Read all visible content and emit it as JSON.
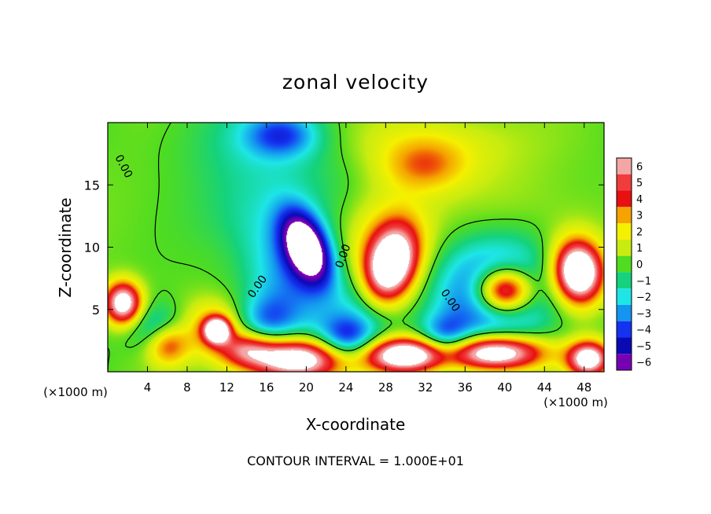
{
  "chart_data": {
    "type": "heatmap",
    "title": "zonal velocity",
    "xlabel": "X-coordinate",
    "ylabel": "Z-coordinate",
    "x_unit_left": "(×1000 m)",
    "x_unit_right": "(×1000 m)",
    "footer": "CONTOUR INTERVAL = 1.000E+01",
    "xlim": [
      0,
      50
    ],
    "ylim": [
      0,
      20
    ],
    "x_ticks": [
      4,
      8,
      12,
      16,
      20,
      24,
      28,
      32,
      36,
      40,
      44,
      48
    ],
    "y_ticks": [
      5,
      10,
      15
    ],
    "colorbar": {
      "levels": [
        6,
        5,
        4,
        3,
        2,
        1,
        0,
        -1,
        -2,
        -3,
        -4,
        -5,
        -6
      ],
      "colors": [
        "#f4a6a6",
        "#f03c3c",
        "#e81010",
        "#f5a300",
        "#f5f000",
        "#c8ec10",
        "#50dc20",
        "#14d27d",
        "#1ee6e6",
        "#1495f0",
        "#1432f0",
        "#0a0ab4",
        "#7800b4"
      ],
      "out_of_range_color": "#ffffff"
    },
    "zero_contour_label": "0.00",
    "features": [
      {
        "x": 20,
        "z": 10,
        "value": -8.0,
        "sx": 1.4,
        "sz": 2.2,
        "rot": 35
      },
      {
        "x": 18.5,
        "z": 7.5,
        "value": -3.0,
        "sx": 3.0,
        "sz": 4.0,
        "rot": 35
      },
      {
        "x": 28.5,
        "z": 8.5,
        "value": 8.0,
        "sx": 1.6,
        "sz": 2.2,
        "rot": -30
      },
      {
        "x": 28,
        "z": 9.5,
        "value": 3.5,
        "sx": 3.2,
        "sz": 3.4,
        "rot": -30
      },
      {
        "x": 40,
        "z": 6.5,
        "value": 9.0,
        "sx": 2.0,
        "sz": 1.3,
        "rot": 0
      },
      {
        "x": 39,
        "z": 6.5,
        "value": -5.0,
        "sx": 4.5,
        "sz": 3.0,
        "rot": 0
      },
      {
        "x": 47.5,
        "z": 8.0,
        "value": 8.0,
        "sx": 1.5,
        "sz": 1.6,
        "rot": 30
      },
      {
        "x": 47,
        "z": 8.0,
        "value": 3.0,
        "sx": 2.5,
        "sz": 2.4,
        "rot": 30
      },
      {
        "x": 1.5,
        "z": 5.5,
        "value": 8.0,
        "sx": 1.3,
        "sz": 1.2,
        "rot": 0
      },
      {
        "x": 11,
        "z": 3.3,
        "value": 8.0,
        "sx": 0.9,
        "sz": 0.7,
        "rot": 0
      },
      {
        "x": 10.5,
        "z": 3.5,
        "value": 3.0,
        "sx": 2.2,
        "sz": 1.6,
        "rot": 0
      },
      {
        "x": 6,
        "z": 2.2,
        "value": 4.0,
        "sx": 1.5,
        "sz": 1.2,
        "rot": 0
      },
      {
        "x": 19,
        "z": 1.0,
        "value": 9.0,
        "sx": 3.5,
        "sz": 1.2,
        "rot": 0
      },
      {
        "x": 30,
        "z": 1.3,
        "value": 9.0,
        "sx": 3.0,
        "sz": 1.0,
        "rot": 0
      },
      {
        "x": 39,
        "z": 1.5,
        "value": 9.0,
        "sx": 3.5,
        "sz": 1.0,
        "rot": 0
      },
      {
        "x": 48.5,
        "z": 1.0,
        "value": 8.0,
        "sx": 1.5,
        "sz": 1.0,
        "rot": 0
      },
      {
        "x": 14,
        "z": 1.8,
        "value": 4.0,
        "sx": 2.0,
        "sz": 1.0,
        "rot": 0
      },
      {
        "x": 24,
        "z": 2.5,
        "value": -4.0,
        "sx": 2.0,
        "sz": 1.3,
        "rot": 0
      },
      {
        "x": 34,
        "z": 2.5,
        "value": -3.5,
        "sx": 1.8,
        "sz": 1.3,
        "rot": 0
      },
      {
        "x": 16,
        "z": 4.0,
        "value": -2.5,
        "sx": 2.0,
        "sz": 1.5,
        "rot": 0
      },
      {
        "x": 5,
        "z": 3.5,
        "value": -2.5,
        "sx": 2.0,
        "sz": 1.3,
        "rot": 0
      },
      {
        "x": 26,
        "z": 5.0,
        "value": -2.5,
        "sx": 2.5,
        "sz": 2.5,
        "rot": 0
      },
      {
        "x": 16,
        "z": 18.0,
        "value": -1.5,
        "sx": 6.0,
        "sz": 3.0,
        "rot": 0
      },
      {
        "x": 17.5,
        "z": 19.0,
        "value": -3.0,
        "sx": 2.5,
        "sz": 1.2,
        "rot": 0
      },
      {
        "x": 14,
        "z": 12.5,
        "value": -1.0,
        "sx": 5.0,
        "sz": 2.5,
        "rot": 0
      },
      {
        "x": 32,
        "z": 16.5,
        "value": 2.5,
        "sx": 3.0,
        "sz": 1.5,
        "rot": 0
      },
      {
        "x": 32,
        "z": 18.5,
        "value": 1.5,
        "sx": 7.0,
        "sz": 2.0,
        "rot": 0
      },
      {
        "x": 42,
        "z": 13.0,
        "value": 0.8,
        "sx": 5.0,
        "sz": 3.0,
        "rot": 0
      },
      {
        "x": 6,
        "z": 13.0,
        "value": 0.6,
        "sx": 5.0,
        "sz": 4.0,
        "rot": 0
      }
    ]
  }
}
